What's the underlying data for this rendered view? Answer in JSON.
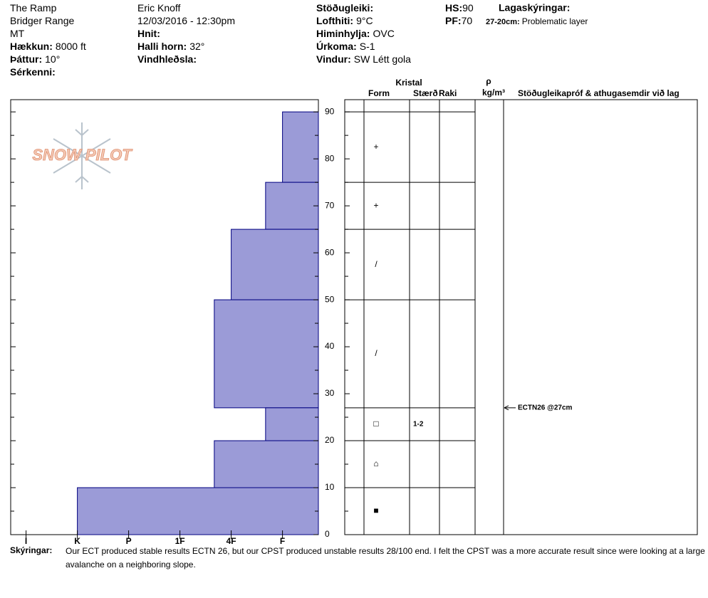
{
  "header": {
    "columns": [
      [
        {
          "value": "The Ramp"
        },
        {
          "value": "Bridger Range"
        },
        {
          "value": "MT"
        },
        {
          "label": "Hækkun:",
          "value": "8000 ft"
        },
        {
          "label": "Þáttur:",
          "value": "10°"
        },
        {
          "label": "Sérkenni:"
        }
      ],
      [
        {
          "value": "Eric Knoff"
        },
        {
          "value": "12/03/2016 - 12:30pm"
        },
        {
          "label": "Hnit:"
        },
        {
          "label": "Halli horn:",
          "value": "32°"
        },
        {
          "label": "Vindhleðsla:"
        }
      ],
      [
        {
          "label": "Stöðugleiki:"
        },
        {
          "label": "Lofthiti:",
          "value": "9°C"
        },
        {
          "label": "Himinhylja:",
          "value": "OVC"
        },
        {
          "label": "Úrkoma:",
          "value": "S-1"
        },
        {
          "label": "Vindur:",
          "value": "SW Létt gola"
        }
      ],
      [
        {
          "label": "HS:",
          "value": "90"
        },
        {
          "label": "PF:",
          "value": "70"
        }
      ]
    ],
    "legend": {
      "title": "Lagaskýringar:",
      "items": [
        {
          "label": "27-20cm:",
          "value": "Problematic layer"
        }
      ]
    }
  },
  "logo": "SNOW PILOT",
  "table_headers": {
    "crystal": "Kristal",
    "form": "Form",
    "size": "Stærð",
    "moisture": "Raki",
    "rho": "ρ",
    "density": "kg/m³",
    "tests": "Stöðugleikapróf & athugasemdir við lag"
  },
  "chart_data": {
    "type": "snowpit",
    "xlim": [
      0.3,
      6.3
    ],
    "xticks": [
      {
        "value": 6,
        "label": "I"
      },
      {
        "value": 5,
        "label": "K"
      },
      {
        "value": 4,
        "label": "P"
      },
      {
        "value": 3,
        "label": "1F"
      },
      {
        "value": 2,
        "label": "4F"
      },
      {
        "value": 1,
        "label": "F"
      }
    ],
    "ylim": [
      0,
      92.6
    ],
    "yticks": [
      0,
      10,
      20,
      30,
      40,
      50,
      60,
      70,
      80,
      90
    ],
    "yminorticks": [
      5,
      15,
      25,
      35,
      45,
      55,
      65,
      75,
      85
    ],
    "color": "#9b9bd7",
    "edge_color": "#000080",
    "layer_top": [
      90,
      75,
      65,
      50,
      27,
      20,
      10
    ],
    "layer_bottom": [
      75,
      65,
      50,
      27,
      20,
      10,
      0
    ],
    "values": [
      1,
      1.33,
      2,
      2.33,
      1.33,
      2.33,
      5
    ],
    "grain_forms": [
      {
        "depth": 82.5,
        "symbol": "+"
      },
      {
        "depth": 70,
        "symbol": "+"
      },
      {
        "depth": 57.5,
        "symbol": "/"
      },
      {
        "depth": 38.5,
        "symbol": "/"
      },
      {
        "depth": 23.5,
        "symbol": "□"
      },
      {
        "depth": 15,
        "symbol": "⌂"
      },
      {
        "depth": 5,
        "symbol": "■"
      }
    ],
    "grain_sizes": [
      {
        "depth": 23.5,
        "label": "1-2"
      }
    ],
    "tests": [
      {
        "depth": 27,
        "label": "ECTN26 @27cm"
      }
    ]
  },
  "footer": {
    "label": "Skýringar:",
    "lines": [
      "Our ECT produced stable results ECTN 26, but our CPST produced unstable results 28/100 end. I felt the CPST was a more accurate result since were looking at a large",
      "avalanche on a neighboring slope."
    ]
  }
}
